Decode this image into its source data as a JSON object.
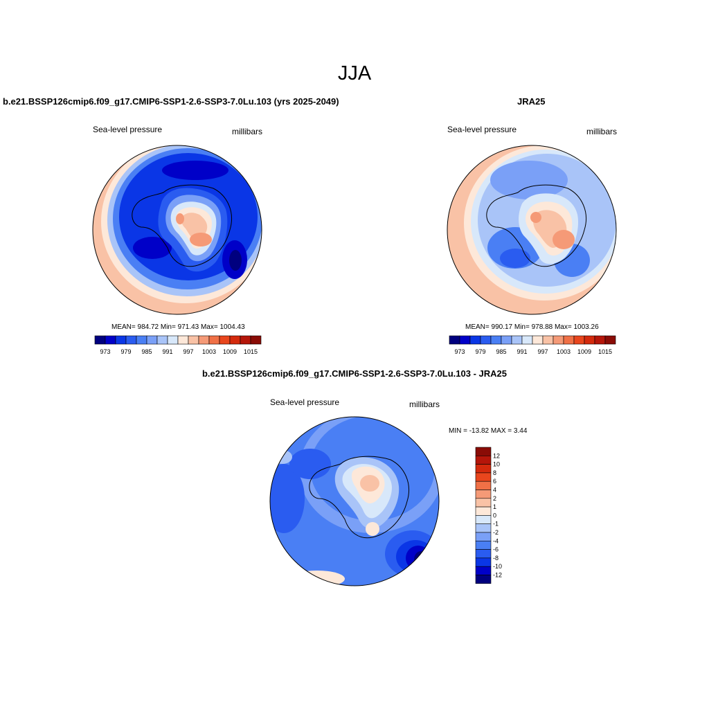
{
  "title": "JJA",
  "colors": [
    "#00007f",
    "#0000c8",
    "#0a36e6",
    "#2a5cf0",
    "#4a7ff4",
    "#7aa0f7",
    "#a9c4f8",
    "#d8e8fa",
    "#fde8d9",
    "#f9c2a6",
    "#f59a77",
    "#f07046",
    "#e9461d",
    "#d42a0d",
    "#b5160a",
    "#8a0c06"
  ],
  "panels": [
    {
      "title": "b.e21.BSSP126cmip6.f09_g17.CMIP6-SSP1-2.6-SSP3-7.0Lu.103 (yrs 2025-2049)",
      "left_label": "Sea-level pressure",
      "right_label": "millibars",
      "stats": "MEAN= 984.72  Min= 971.43  Max= 1004.43",
      "colorbar_ticks": [
        "973",
        "979",
        "985",
        "991",
        "997",
        "1003",
        "1009",
        "1015"
      ]
    },
    {
      "title": "JRA25",
      "left_label": "Sea-level pressure",
      "right_label": "millibars",
      "stats": "MEAN= 990.17  Min= 978.88  Max= 1003.26",
      "colorbar_ticks": [
        "973",
        "979",
        "985",
        "991",
        "997",
        "1003",
        "1009",
        "1015"
      ]
    },
    {
      "title": "b.e21.BSSP126cmip6.f09_g17.CMIP6-SSP1-2.6-SSP3-7.0Lu.103 - JRA25",
      "left_label": "Sea-level pressure",
      "right_label": "millibars",
      "stats": "MIN = -13.82 MAX =   3.44",
      "colorbar_ticks": [
        "12",
        "10",
        "8",
        "6",
        "4",
        "2",
        "1",
        "0",
        "-1",
        "-2",
        "-4",
        "-6",
        "-8",
        "-10",
        "-12"
      ]
    }
  ],
  "chart_data": [
    {
      "type": "heatmap",
      "title": "b.e21.BSSP126cmip6.f09_g17.CMIP6-SSP1-2.6-SSP3-7.0Lu.103 (yrs 2025-2049)",
      "variable": "Sea-level pressure",
      "units": "millibars",
      "mean": 984.72,
      "min": 971.43,
      "max": 1004.43,
      "levels": [
        973,
        976,
        979,
        982,
        985,
        988,
        991,
        994,
        997,
        1000,
        1003,
        1006,
        1009,
        1012,
        1015
      ]
    },
    {
      "type": "heatmap",
      "title": "JRA25",
      "variable": "Sea-level pressure",
      "units": "millibars",
      "mean": 990.17,
      "min": 978.88,
      "max": 1003.26,
      "levels": [
        973,
        976,
        979,
        982,
        985,
        988,
        991,
        994,
        997,
        1000,
        1003,
        1006,
        1009,
        1012,
        1015
      ]
    },
    {
      "type": "heatmap",
      "title": "b.e21.BSSP126cmip6.f09_g17.CMIP6-SSP1-2.6-SSP3-7.0Lu.103 - JRA25",
      "variable": "Sea-level pressure",
      "units": "millibars",
      "min": -13.82,
      "max": 3.44,
      "levels": [
        -12,
        -10,
        -8,
        -6,
        -4,
        -2,
        -1,
        0,
        1,
        2,
        4,
        6,
        8,
        10,
        12
      ]
    }
  ]
}
